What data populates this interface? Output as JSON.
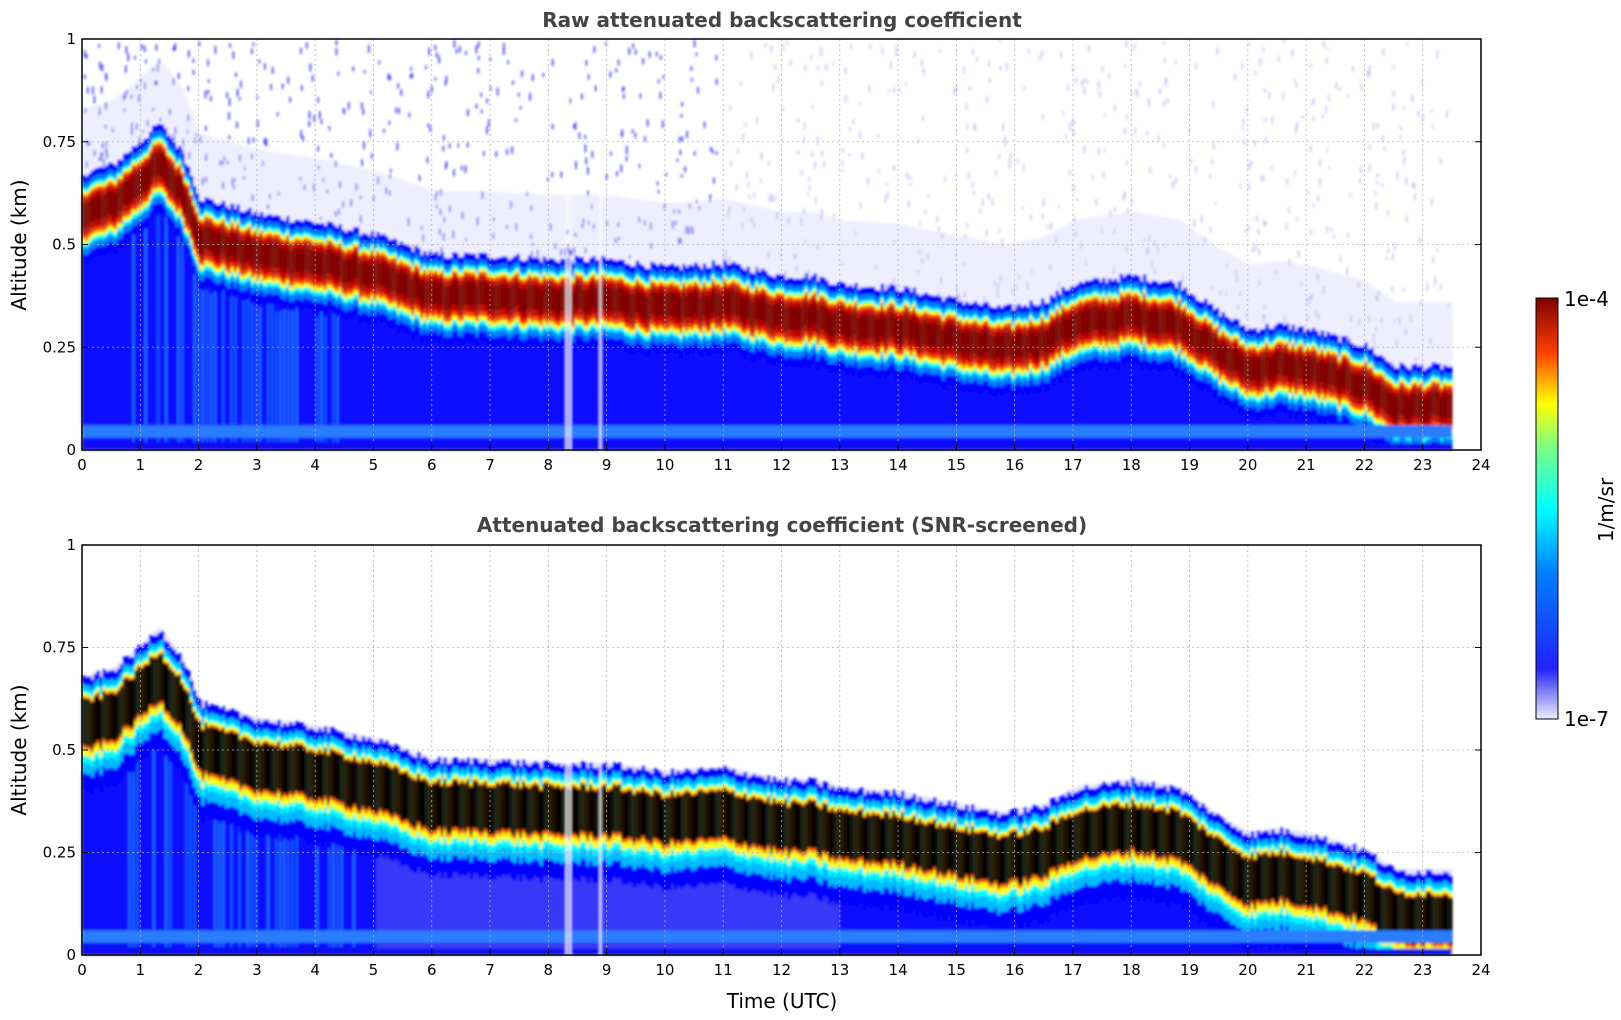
{
  "chart_data": [
    {
      "type": "heatmap",
      "title": "Raw attenuated backscattering coefficient",
      "xlabel": "",
      "ylabel": "Altitude (km)",
      "xlim": [
        0,
        24
      ],
      "ylim": [
        0,
        1
      ],
      "xticks": [
        "0",
        "1",
        "2",
        "3",
        "4",
        "5",
        "6",
        "7",
        "8",
        "9",
        "10",
        "11",
        "12",
        "13",
        "14",
        "15",
        "16",
        "17",
        "18",
        "19",
        "20",
        "21",
        "22",
        "23",
        "24"
      ],
      "yticks": [
        "0",
        "0.25",
        "0.5",
        "0.75",
        "1"
      ],
      "grid": true,
      "data_extent_hours": [
        0,
        23.5
      ],
      "layer_peak_altitude_km": {
        "x": [
          0,
          0.5,
          1.0,
          1.3,
          1.7,
          2.0,
          3.0,
          4.0,
          5.0,
          6.0,
          7.0,
          8.0,
          9.0,
          10.0,
          11.0,
          12.0,
          12.5,
          13.0,
          14.0,
          15.0,
          15.8,
          16.5,
          17.0,
          18.0,
          18.8,
          19.5,
          20.0,
          20.5,
          21.0,
          22.0,
          22.5,
          23.0,
          23.5
        ],
        "y": [
          0.58,
          0.6,
          0.66,
          0.7,
          0.63,
          0.52,
          0.48,
          0.46,
          0.43,
          0.38,
          0.38,
          0.37,
          0.37,
          0.35,
          0.36,
          0.33,
          0.33,
          0.31,
          0.3,
          0.27,
          0.25,
          0.27,
          0.31,
          0.33,
          0.31,
          0.24,
          0.2,
          0.21,
          0.2,
          0.16,
          0.11,
          0.11,
          0.11
        ]
      }
    },
    {
      "type": "heatmap",
      "title": "Attenuated backscattering coefficient (SNR-screened)",
      "xlabel": "Time (UTC)",
      "ylabel": "Altitude (km)",
      "xlim": [
        0,
        24
      ],
      "ylim": [
        0,
        1
      ],
      "xticks": [
        "0",
        "1",
        "2",
        "3",
        "4",
        "5",
        "6",
        "7",
        "8",
        "9",
        "10",
        "11",
        "12",
        "13",
        "14",
        "15",
        "16",
        "17",
        "18",
        "19",
        "20",
        "21",
        "22",
        "23",
        "24"
      ],
      "yticks": [
        "0",
        "0.25",
        "0.5",
        "0.75",
        "1"
      ],
      "grid": true,
      "data_extent_hours": [
        0,
        23.5
      ],
      "saturated_color": "#000000"
    }
  ],
  "colorbar": {
    "label": "1/m/sr",
    "max_label": "1e-4",
    "min_label": "1e-7",
    "colormap": "jet",
    "colors": [
      "#e6e6fa",
      "#0000ff",
      "#00ffff",
      "#ffff00",
      "#ff0000",
      "#800000"
    ]
  }
}
